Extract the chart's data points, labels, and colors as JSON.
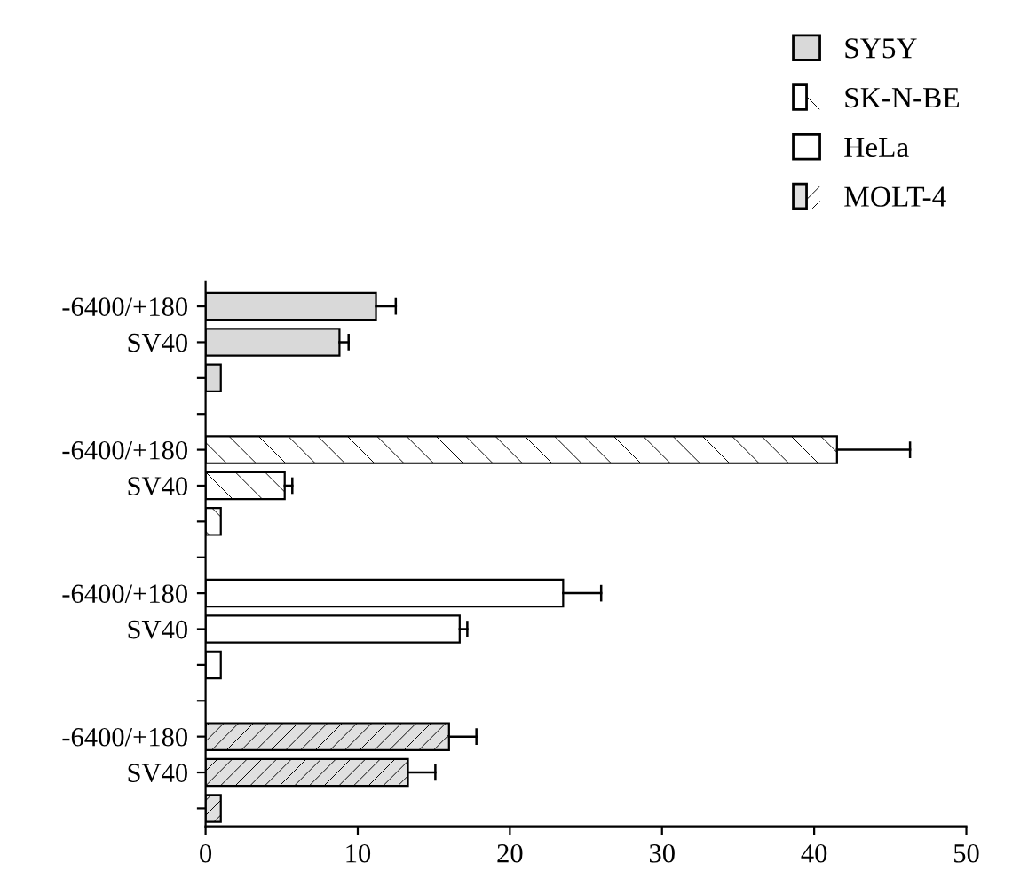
{
  "chart_data": {
    "type": "bar",
    "orientation": "horizontal",
    "legend": "top right",
    "grid": false,
    "categories": [
      "-6400/+180",
      "SV40",
      null,
      null,
      "-6400/+180",
      "SV40",
      null,
      null,
      "-6400/+180",
      "SV40",
      null,
      null,
      "-6400/+180",
      "SV40",
      null
    ],
    "series": [
      {
        "name": "SY5Y",
        "color": "#d9d9d9",
        "values": [
          11.2,
          8.8,
          1.0,
          null,
          null,
          null,
          null,
          null,
          null,
          null,
          null,
          null,
          null,
          null,
          null
        ],
        "errors": [
          [
            11.2,
            12.5
          ],
          [
            8.8,
            9.4
          ],
          null,
          null,
          null,
          null,
          null,
          null,
          null,
          null,
          null,
          null,
          null,
          null,
          null
        ]
      },
      {
        "name": "SK-N-BE",
        "color": "#ffffff",
        "values": [
          null,
          null,
          null,
          null,
          41.5,
          5.2,
          1.0,
          null,
          null,
          null,
          null,
          null,
          null,
          null,
          null
        ],
        "errors": [
          null,
          null,
          null,
          null,
          [
            41.5,
            46.3
          ],
          [
            5.2,
            5.7
          ],
          null,
          null,
          null,
          null,
          null,
          null,
          null,
          null,
          null
        ]
      },
      {
        "name": "HeLa",
        "color": "#ffffff",
        "values": [
          null,
          null,
          null,
          null,
          null,
          null,
          null,
          null,
          23.5,
          16.7,
          1.0,
          null,
          null,
          null,
          null
        ],
        "errors": [
          null,
          null,
          null,
          null,
          null,
          null,
          null,
          null,
          [
            23.5,
            26.0
          ],
          [
            16.7,
            17.2
          ],
          null,
          null,
          null,
          null,
          null
        ]
      },
      {
        "name": "MOLT-4",
        "color": "#e0e0e0",
        "values": [
          null,
          null,
          null,
          null,
          null,
          null,
          null,
          null,
          null,
          null,
          null,
          null,
          16.0,
          13.3,
          1.0
        ],
        "errors": [
          null,
          null,
          null,
          null,
          null,
          null,
          null,
          null,
          null,
          null,
          null,
          null,
          [
            16.0,
            17.8
          ],
          [
            13.3,
            15.1
          ],
          null
        ]
      }
    ],
    "xlim": [
      0,
      50
    ],
    "xticks": [
      0,
      10,
      20,
      30,
      40,
      50
    ]
  }
}
